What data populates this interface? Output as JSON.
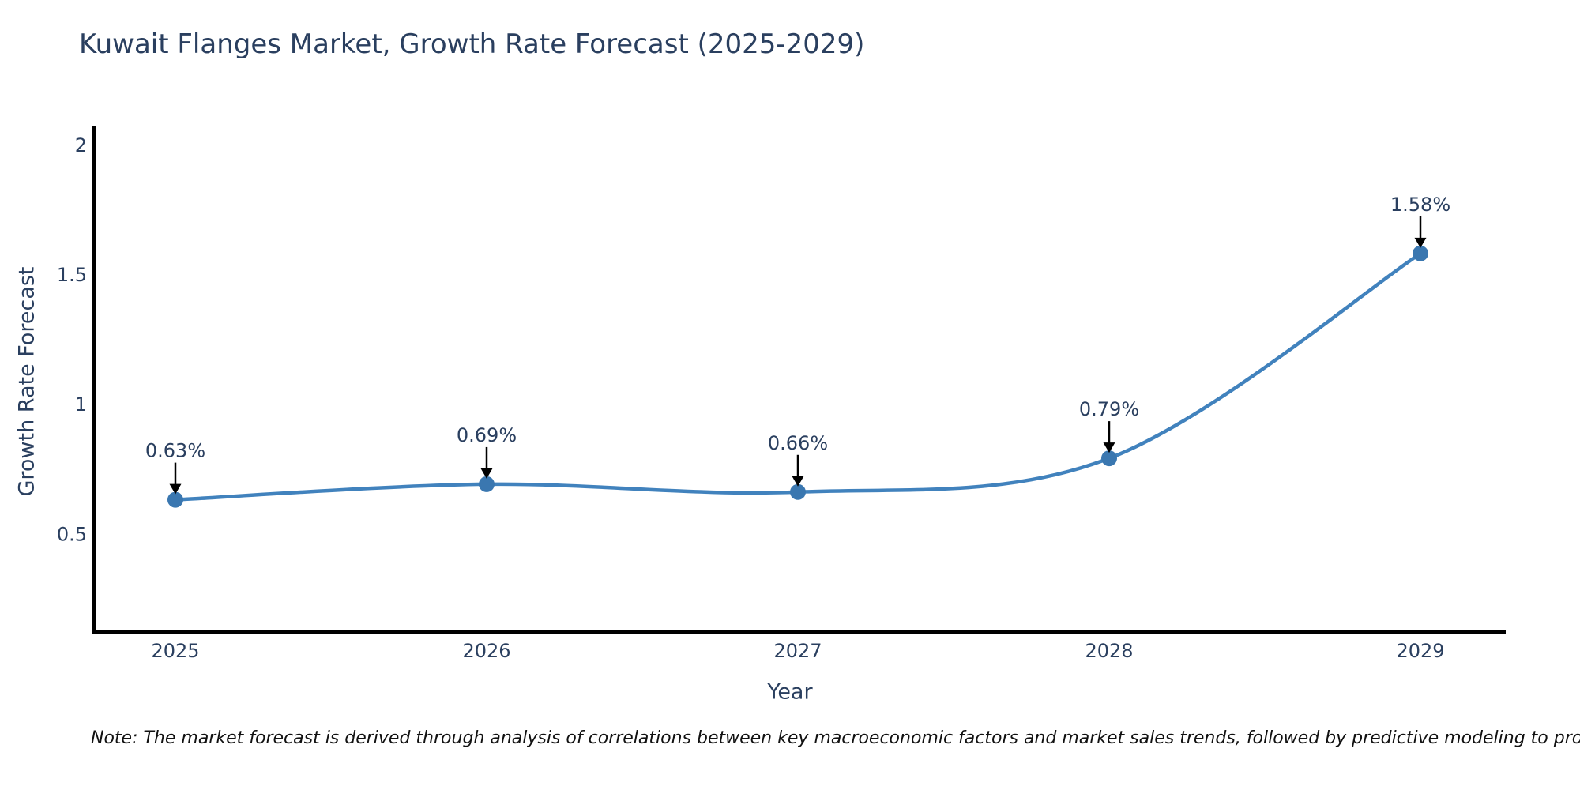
{
  "title": {
    "text": "Kuwait Flanges Market, Growth Rate Forecast (2025-2029)"
  },
  "note": {
    "text": "Note: The market forecast is derived through analysis of correlations between key macroeconomic factors and market sales trends, followed by predictive modeling to project future sales"
  },
  "chart_data": {
    "type": "line",
    "title": "Kuwait Flanges Market, Growth Rate Forecast (2025-2029)",
    "x": [
      "2025",
      "2026",
      "2027",
      "2028",
      "2029"
    ],
    "y": [
      0.63,
      0.69,
      0.66,
      0.79,
      1.58
    ],
    "point_labels": [
      "0.63%",
      "0.69%",
      "0.66%",
      "0.79%",
      "1.58%"
    ],
    "xlabel": "Year",
    "ylabel": "Growth Rate Forecast",
    "yticks": [
      "0.5",
      "1",
      "1.5",
      "2"
    ],
    "ytick_values": [
      0.5,
      1,
      1.5,
      2
    ],
    "ylim": [
      0.12,
      2.07
    ],
    "line_shape": "spline",
    "grid": false,
    "legend": "none",
    "colors": {
      "line": "#4182bd",
      "marker": "#3a77b0",
      "axis": "#000000",
      "text": "#2a3f5f",
      "annotation_text": "#2a3f5f",
      "annotation_arrow": "#000000",
      "background": "#ffffff"
    }
  }
}
